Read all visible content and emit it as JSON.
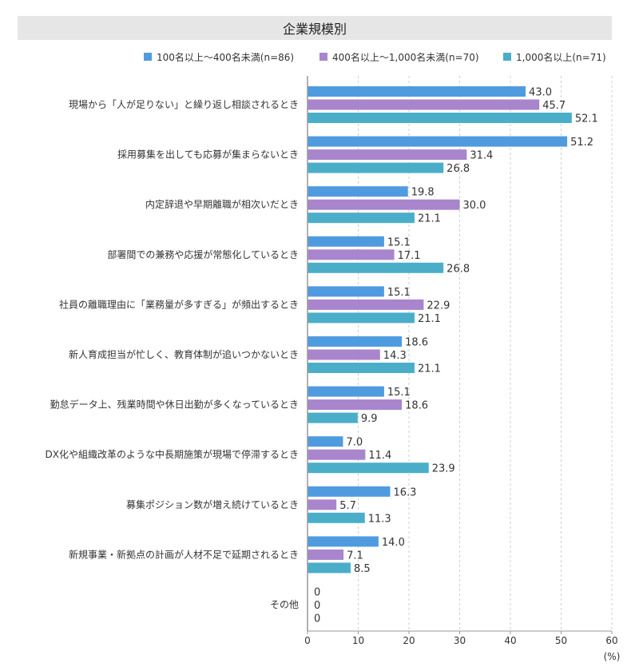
{
  "chart_data": {
    "type": "bar",
    "orientation": "horizontal",
    "title": "企業規模別",
    "xlabel": "(%)",
    "xlim": [
      0,
      60
    ],
    "xticks": [
      0,
      10,
      20,
      30,
      40,
      50,
      60
    ],
    "grid": true,
    "legend_position": "top",
    "categories": [
      "現場から「人が足りない」と繰り返し相談されるとき",
      "採用募集を出しても応募が集まらないとき",
      "内定辞退や早期離職が相次いだとき",
      "部署間での兼務や応援が常態化しているとき",
      "社員の離職理由に「業務量が多すぎる」が頻出するとき",
      "新人育成担当が忙しく、教育体制が追いつかないとき",
      "勤怠データ上、残業時間や休日出勤が多くなっているとき",
      "DX化や組織改革のような中長期施策が現場で停滞するとき",
      "募集ポジション数が増え続けているとき",
      "新規事業・新拠点の計画が人材不足で延期されるとき",
      "その他"
    ],
    "series": [
      {
        "name": "100名以上～400名未満(n=86)",
        "color": "#4f9be0",
        "values": [
          43.0,
          51.2,
          19.8,
          15.1,
          15.1,
          18.6,
          15.1,
          7.0,
          16.3,
          14.0,
          0
        ]
      },
      {
        "name": "400名以上～1,000名未満(n=70)",
        "color": "#a885cc",
        "values": [
          45.7,
          31.4,
          30.0,
          17.1,
          22.9,
          14.3,
          18.6,
          11.4,
          5.7,
          7.1,
          0
        ]
      },
      {
        "name": "1,000名以上(n=71)",
        "color": "#4aaec9",
        "values": [
          52.1,
          26.8,
          21.1,
          26.8,
          21.1,
          21.1,
          9.9,
          23.9,
          11.3,
          8.5,
          0
        ]
      }
    ]
  }
}
